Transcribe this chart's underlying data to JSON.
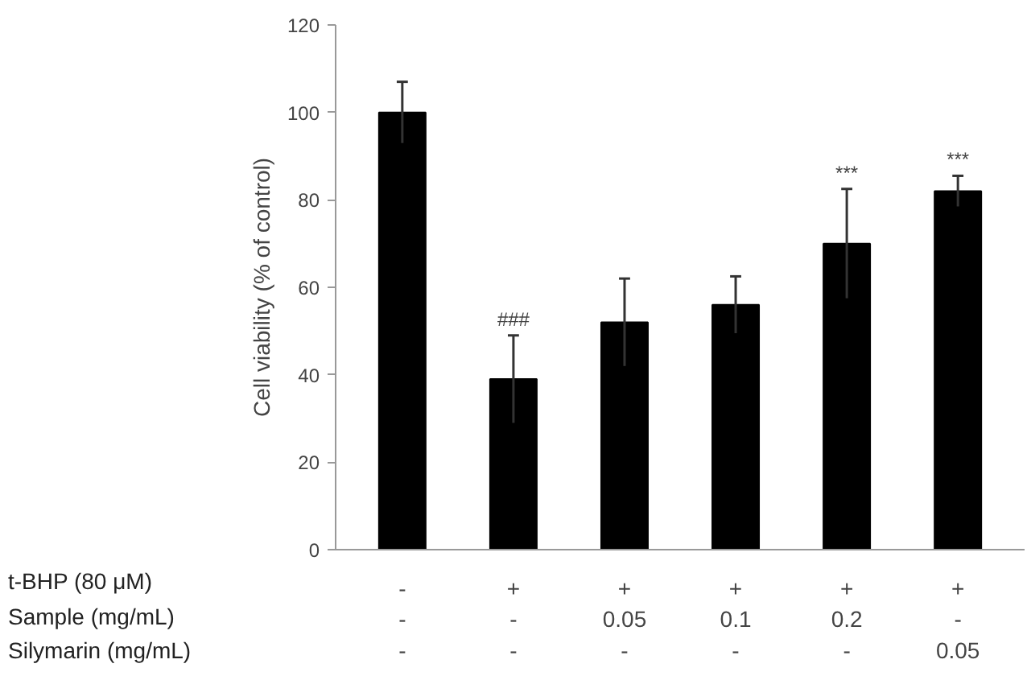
{
  "chart_data": {
    "type": "bar",
    "categories": [
      "-\n-\n-",
      "+\n-\n-",
      "+\n0.05\n-",
      "+\n0.1\n-",
      "+\n0.2\n-",
      "+\n-\n0.05"
    ],
    "values": [
      100,
      39,
      52,
      56,
      70,
      82
    ],
    "errors": [
      7,
      10,
      10,
      6.5,
      12.5,
      3.5
    ],
    "color": "#000000",
    "ylabel": "Cell viability (% of control)",
    "ylim": [
      0,
      120
    ],
    "yticks": [
      0,
      20,
      40,
      60,
      80,
      100,
      120
    ],
    "grid": false,
    "annotations": [
      {
        "text": "###",
        "x": "+\n-\n-",
        "y": 49
      },
      {
        "text": "***",
        "x": "+\n0.2\n-",
        "y": 82.5
      },
      {
        "text": "***",
        "x": "+\n-\n0.05",
        "y": 85.5
      },
      "t-BHP (80  μM)",
      "Sample (mg/mL)",
      "Silymarin (mg/mL)"
    ]
  }
}
